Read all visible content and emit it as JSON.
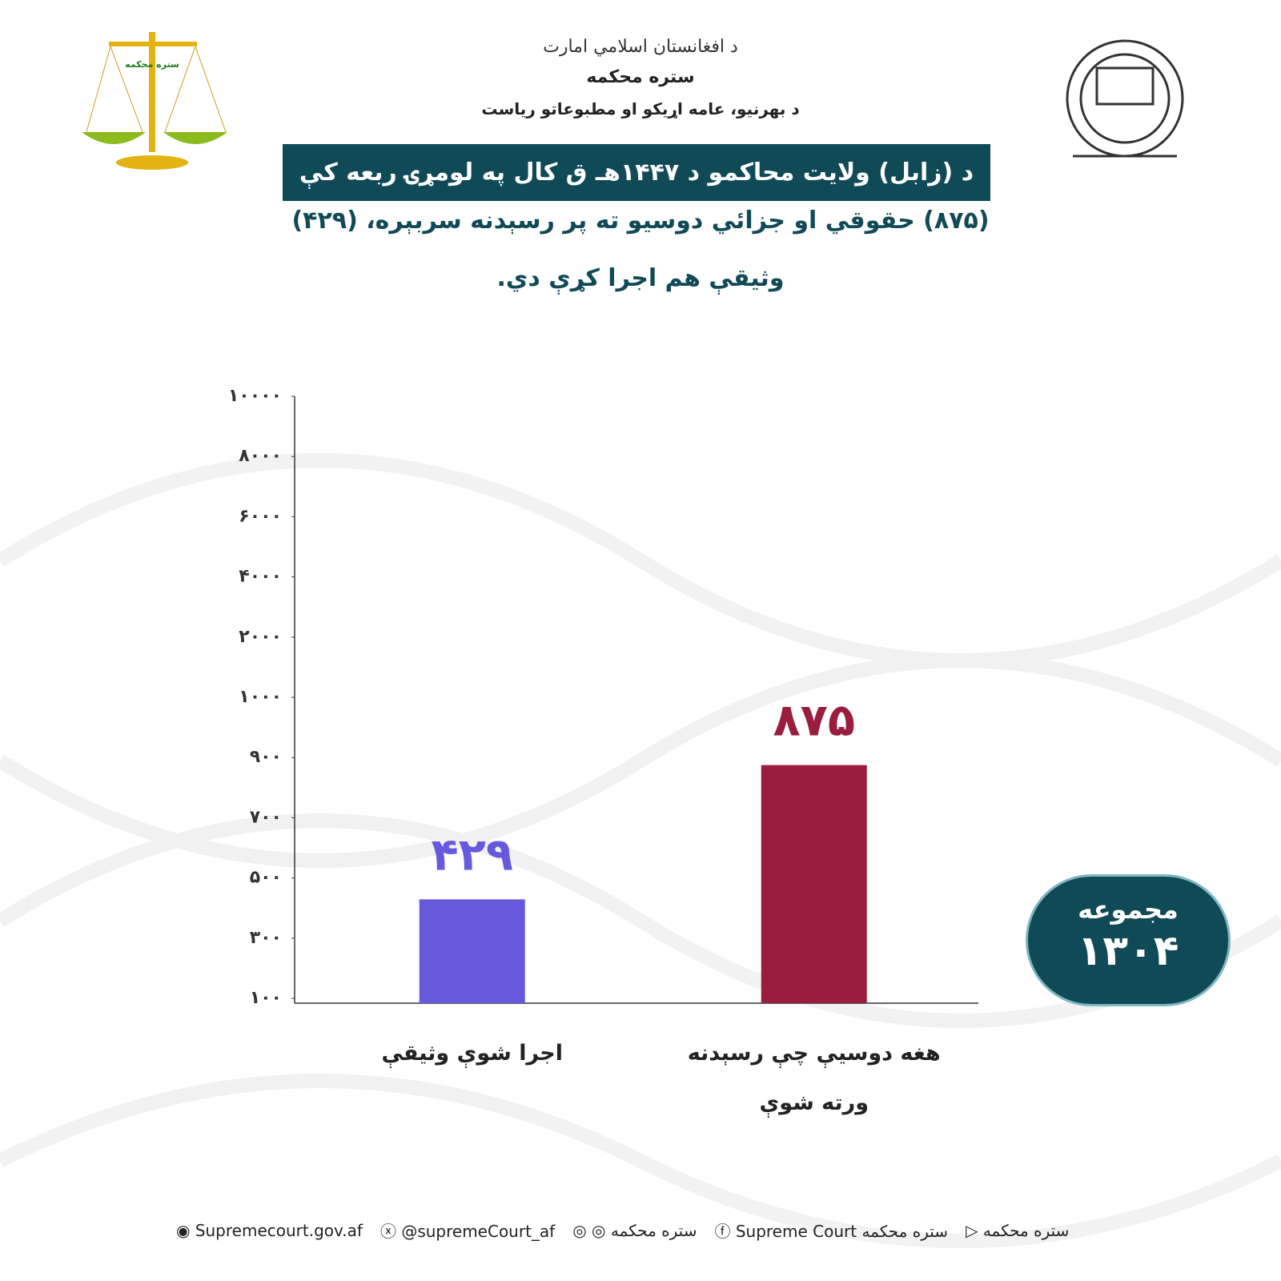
{
  "header": {
    "emirate": "د افغانستان اسلامي امارت",
    "court": "ستره محکمه",
    "directorate": "د بهرنيو، عامه اړيکو او مطبوعاتو رياست",
    "logo_text": "ستره محکمه"
  },
  "chart_data": {
    "type": "bar",
    "title": "د (زابل) ولايت محاکمو د ۱۴۴۷هـ ق کال په لومړۍ ربعه کې",
    "subtitle": [
      "(۸۷۵) حقوقي او جزائي دوسيو ته پر رسېدنه سربېره، (۴۲۹)",
      "وثيقې هم اجرا کړې دي."
    ],
    "categories": [
      "اجرا شوې وثيقې",
      "هغه دوسيې چې رسېدنه ورته شوې"
    ],
    "series": [
      {
        "name": null,
        "colors": [
          "#6759dc",
          "#9b1d3e"
        ],
        "values": [
          429,
          875
        ],
        "value_labels": [
          "۴۲۹",
          "۸۷۵"
        ]
      }
    ],
    "ylim": [
      100,
      10000
    ],
    "yticks": [
      {
        "value": 100,
        "label": "۱۰۰"
      },
      {
        "value": 300,
        "label": "۳۰۰"
      },
      {
        "value": 500,
        "label": "۵۰۰"
      },
      {
        "value": 700,
        "label": "۷۰۰"
      },
      {
        "value": 900,
        "label": "۹۰۰"
      },
      {
        "value": 1000,
        "label": "۱۰۰۰"
      },
      {
        "value": 2000,
        "label": "۲۰۰۰"
      },
      {
        "value": 4000,
        "label": "۴۰۰۰"
      },
      {
        "value": 6000,
        "label": "۶۰۰۰"
      },
      {
        "value": 8000,
        "label": "۸۰۰۰"
      },
      {
        "value": 10000,
        "label": "۱۰۰۰۰"
      }
    ],
    "total_title": "مجموعه",
    "total": "۱۳۰۴"
  },
  "footer": {
    "links": [
      "Supremecourt.gov.af",
      "@supremeCourt_af",
      "ستره محکمه",
      "Supreme Court ستره محکمه",
      "ستره محکمه"
    ]
  }
}
